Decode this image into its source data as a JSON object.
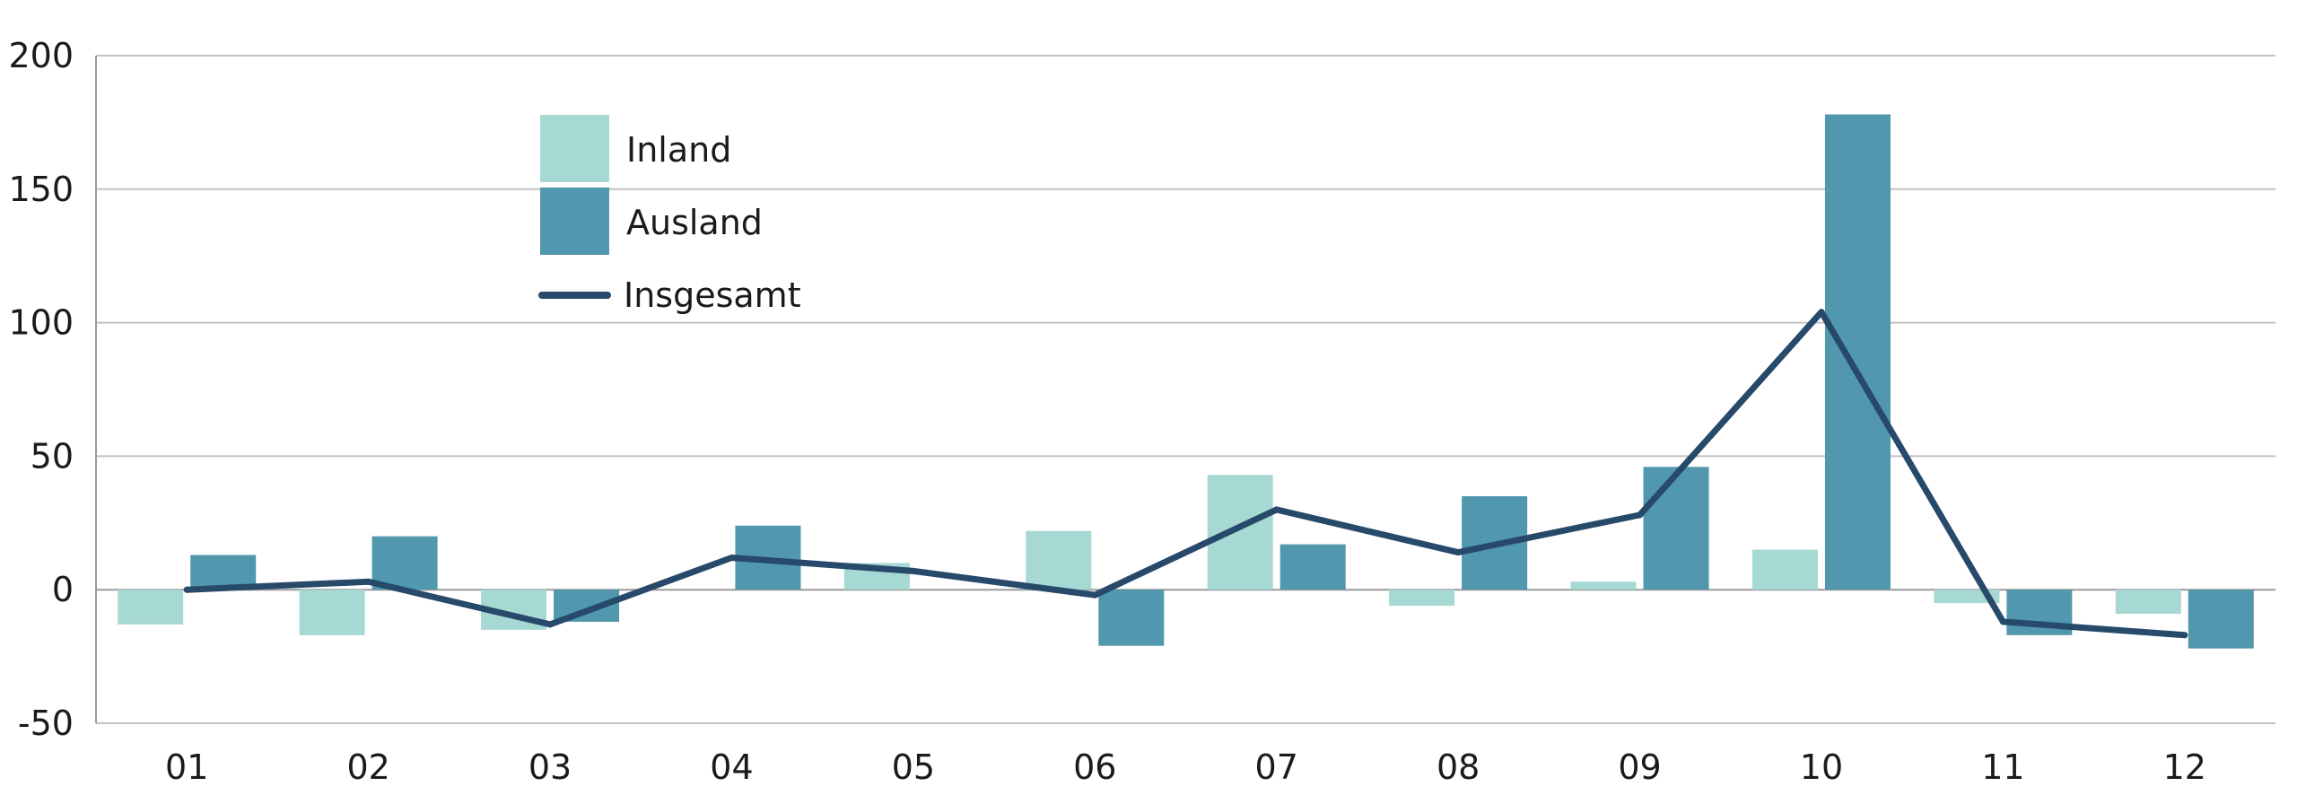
{
  "chart_data": {
    "type": "bar",
    "categories": [
      "01",
      "02",
      "03",
      "04",
      "05",
      "06",
      "07",
      "08",
      "09",
      "10",
      "11",
      "12"
    ],
    "series": [
      {
        "name": "Inland",
        "kind": "bar",
        "color": "#a6d8d4",
        "values": [
          -13,
          -17,
          -15,
          0,
          10,
          22,
          43,
          -6,
          3,
          15,
          -5,
          -9
        ]
      },
      {
        "name": "Ausland",
        "kind": "bar",
        "color": "#5197ae",
        "values": [
          13,
          20,
          -12,
          24,
          0,
          -21,
          17,
          35,
          46,
          178,
          -17,
          -22
        ]
      },
      {
        "name": "Insgesamt",
        "kind": "line",
        "color": "#27496a",
        "values": [
          0,
          3,
          -13,
          12,
          7,
          -2,
          30,
          14,
          28,
          104,
          -12,
          -17
        ]
      }
    ],
    "ylim": [
      -50,
      200
    ],
    "yticks": [
      -50,
      0,
      50,
      100,
      150,
      200
    ],
    "grid": true,
    "legend_position": "top-left"
  }
}
